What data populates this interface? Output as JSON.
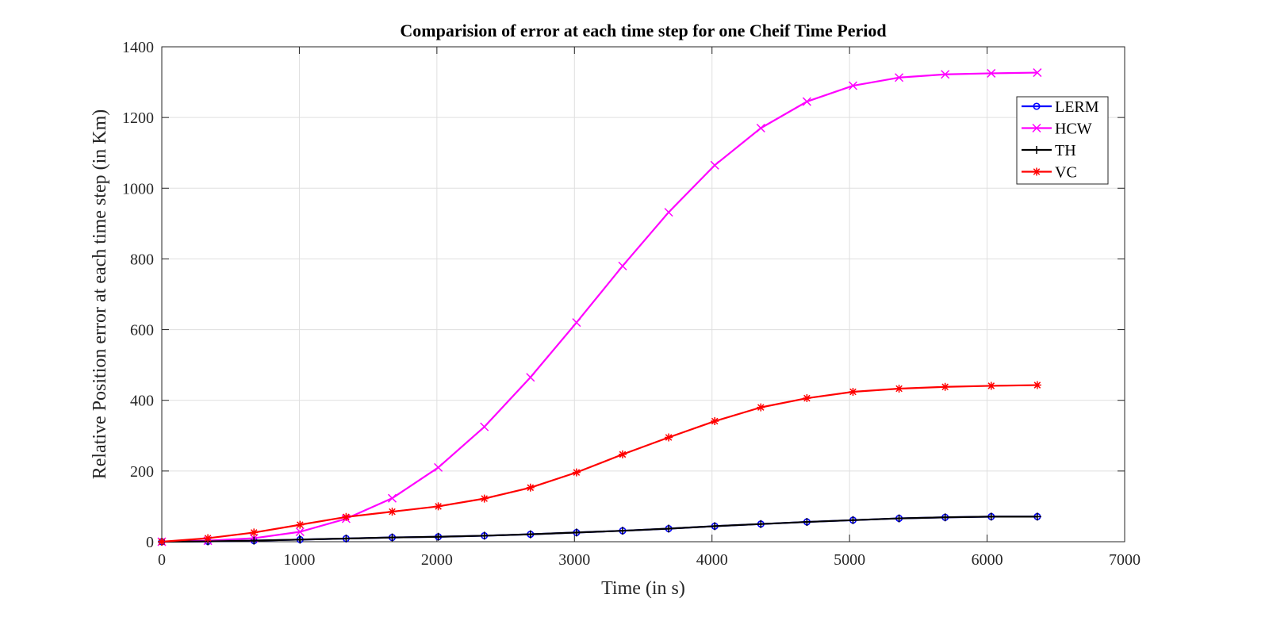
{
  "chart_data": {
    "type": "line",
    "title": "Comparision of error at each time step for one Cheif Time Period",
    "xlabel": "Time (in s)",
    "ylabel": "Relative Position error at each time step (in Km)",
    "xlim": [
      0,
      7000
    ],
    "ylim": [
      0,
      1400
    ],
    "xticks": [
      0,
      1000,
      2000,
      3000,
      4000,
      5000,
      6000,
      7000
    ],
    "yticks": [
      0,
      200,
      400,
      600,
      800,
      1000,
      1200,
      1400
    ],
    "grid": true,
    "legend_position": "top-right",
    "x": [
      0,
      335,
      670,
      1005,
      1340,
      1675,
      2010,
      2345,
      2680,
      3015,
      3350,
      3685,
      4020,
      4355,
      4690,
      5025,
      5360,
      5695,
      6030,
      6365
    ],
    "series": [
      {
        "name": "LERM",
        "color": "#0000ff",
        "marker": "circle",
        "values": [
          0,
          1,
          3,
          6,
          9,
          12,
          14,
          17,
          21,
          26,
          31,
          37,
          44,
          50,
          56,
          61,
          66,
          69,
          71,
          71
        ]
      },
      {
        "name": "HCW",
        "color": "#ff00ff",
        "marker": "x",
        "values": [
          0,
          3,
          10,
          28,
          65,
          123,
          210,
          325,
          465,
          620,
          780,
          932,
          1065,
          1170,
          1245,
          1290,
          1313,
          1322,
          1325,
          1327
        ]
      },
      {
        "name": "TH",
        "color": "#000000",
        "marker": "plus",
        "values": [
          0,
          1,
          3,
          6,
          9,
          12,
          14,
          17,
          21,
          26,
          31,
          37,
          44,
          50,
          56,
          61,
          66,
          69,
          71,
          71
        ]
      },
      {
        "name": "VC",
        "color": "#ff0000",
        "marker": "asterisk",
        "values": [
          0,
          10,
          26,
          48,
          70,
          85,
          100,
          122,
          153,
          196,
          247,
          295,
          341,
          380,
          406,
          424,
          433,
          438,
          441,
          443
        ]
      }
    ]
  }
}
